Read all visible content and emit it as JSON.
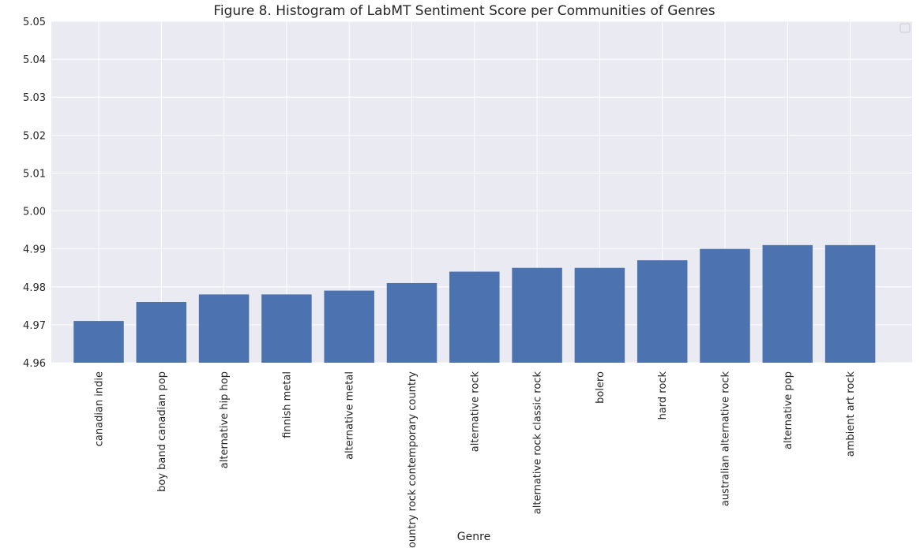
{
  "chart_data": {
    "type": "bar",
    "title": "Figure 8. Histogram of LabMT Sentiment Score per Communities of Genres",
    "xlabel": "Genre",
    "ylabel": "",
    "ylim": [
      4.96,
      5.05
    ],
    "yticks": [
      4.96,
      4.97,
      4.98,
      4.99,
      5.0,
      5.01,
      5.02,
      5.03,
      5.04,
      5.05
    ],
    "ytick_labels": [
      "4.96",
      "4.97",
      "4.98",
      "4.99",
      "5.00",
      "5.01",
      "5.02",
      "5.03",
      "5.04",
      "5.05"
    ],
    "categories": [
      "canadian indie",
      "boy band canadian pop",
      "alternative hip hop",
      "finnish metal",
      "alternative metal",
      "country rock contemporary country",
      "alternative rock",
      "alternative rock classic rock",
      "bolero",
      "hard rock",
      "australian alternative rock",
      "alternative pop",
      "ambient art rock"
    ],
    "values": [
      4.971,
      4.976,
      4.978,
      4.978,
      4.979,
      4.981,
      4.984,
      4.985,
      4.985,
      4.987,
      4.99,
      4.991,
      4.991
    ],
    "bar_color": "#4c72b0",
    "background_color": "#eaeaf2",
    "grid": true,
    "legend": "top-right",
    "legend_entries": []
  }
}
